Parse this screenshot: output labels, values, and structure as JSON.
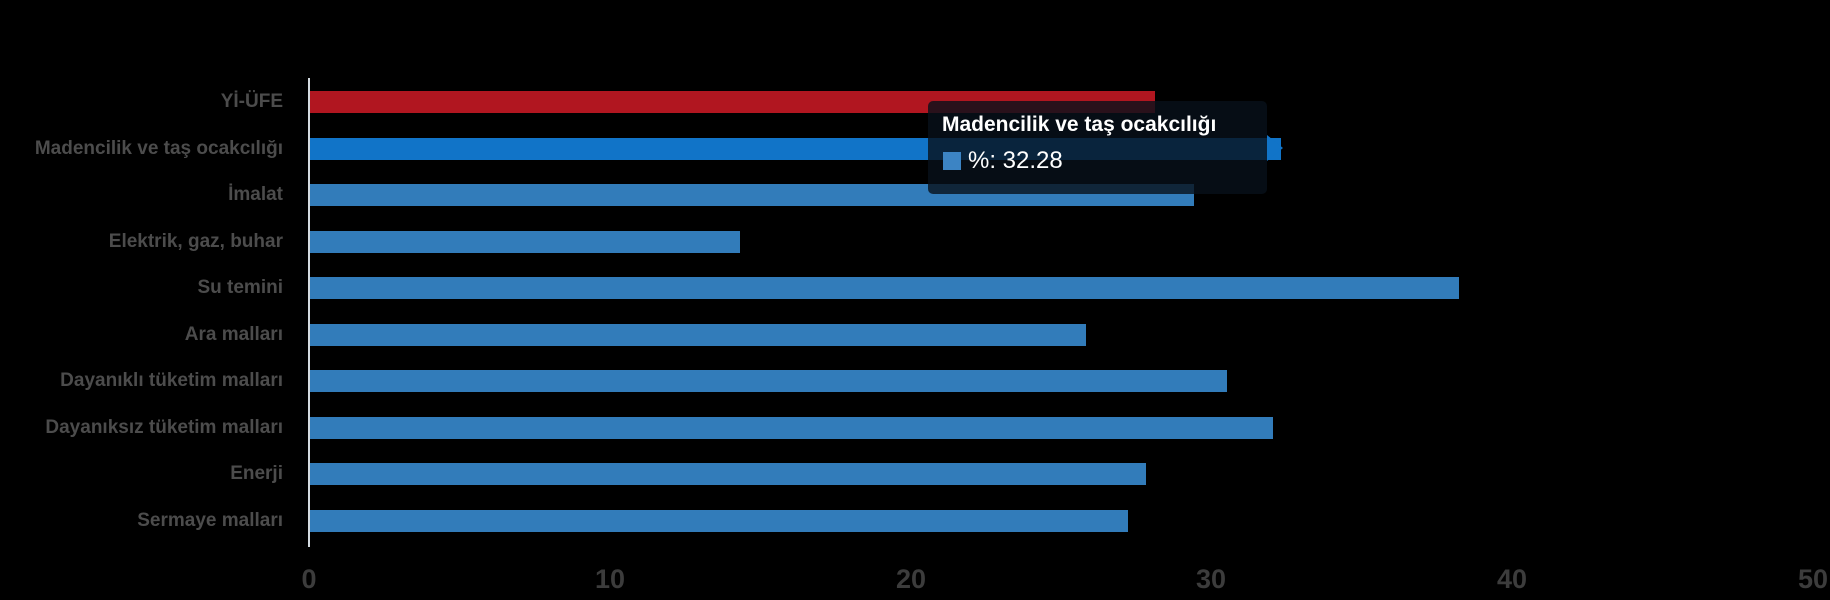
{
  "chart_data": {
    "type": "bar",
    "orientation": "horizontal",
    "title": "",
    "xlabel": "",
    "ylabel": "",
    "series_name": "%",
    "categories": [
      "Yİ-ÜFE",
      "Madencilik ve taş ocakcılığı",
      "İmalat",
      "Elektrik, gaz, buhar",
      "Su temini",
      "Ara malları",
      "Dayanıklı tüketim malları",
      "Dayanıksız tüketim malları",
      "Enerji",
      "Sermaye malları"
    ],
    "values": [
      28.1,
      32.28,
      29.4,
      14.3,
      38.2,
      25.8,
      30.5,
      32.0,
      27.8,
      27.2
    ],
    "bar_colors": [
      "#b11620",
      "#1174c8",
      "#327cba",
      "#327cba",
      "#327cba",
      "#327cba",
      "#327cba",
      "#327cba",
      "#327cba",
      "#327cba"
    ],
    "xlim": [
      0,
      50
    ],
    "x_ticks": [
      0,
      10,
      20,
      30,
      40,
      50
    ],
    "grid": false,
    "legend": false,
    "background": "#000000",
    "highlighted_category": "Madencilik ve taş ocakcılığı"
  },
  "tooltip": {
    "title": "Madencilik ve taş ocakcılığı",
    "value_label": "%: 32.28",
    "swatch_color": "#3c84c4",
    "background": "rgba(8,16,26,0.8)",
    "pointer_color": "#1174c8"
  },
  "colors": {
    "accent_red": "#b11620",
    "hover_blue": "#1174c8",
    "normal_blue": "#327cba",
    "axis_line": "#d4dbe1",
    "category_label": "#4c4c4c",
    "tick_label": "#3c3c3c"
  }
}
